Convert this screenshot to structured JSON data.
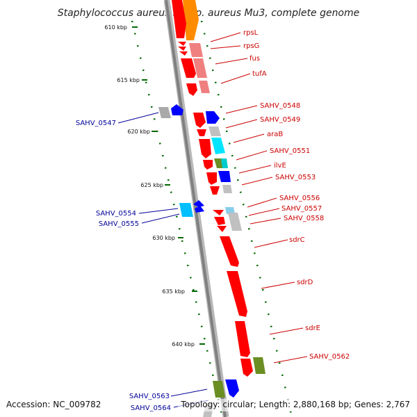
{
  "title": "Staphylococcus aureus subsp. aureus Mu3, complete genome",
  "footer": {
    "accession": "Accession: NC_009782",
    "topology": "Topology: circular; Length: 2,880,168 bp; Genes: 2,767"
  },
  "colors": {
    "forward_label": "#cc0000",
    "reverse_label": "#000099",
    "ticks": "#006600",
    "axis": "#888888"
  },
  "ticks": [
    "610 kbp",
    "615 kbp",
    "620 kbp",
    "625 kbp",
    "630 kbp",
    "635 kbp",
    "640 kbp"
  ],
  "forward_labels": [
    "rpsL",
    "rpsG",
    "fus",
    "tufA",
    "SAHV_0548",
    "SAHV_0549",
    "araB",
    "SAHV_0551",
    "ilvE",
    "SAHV_0553",
    "SAHV_0556",
    "SAHV_0557",
    "SAHV_0558",
    "sdrC",
    "sdrD",
    "sdrE",
    "SAHV_0562"
  ],
  "reverse_labels": [
    "SAHV_0547",
    "SAHV_0554",
    "SAHV_0555",
    "SAHV_0563",
    "SAHV_0564"
  ]
}
